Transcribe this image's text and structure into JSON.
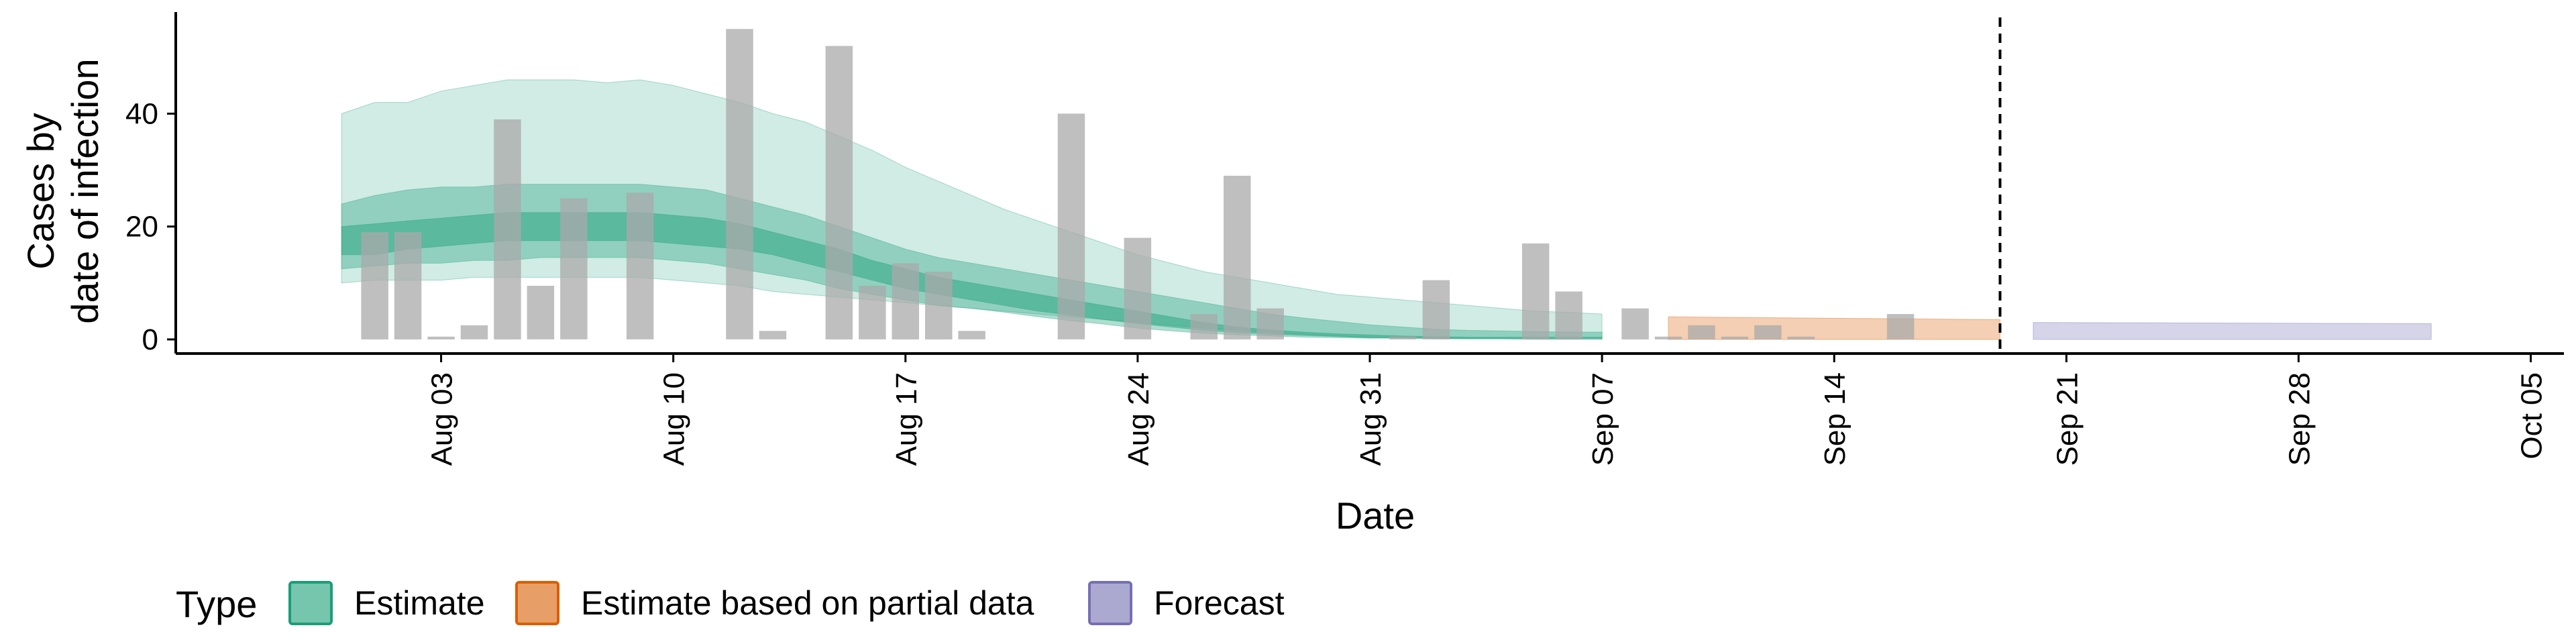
{
  "chart_data": {
    "type": "bar",
    "xlabel": "Date",
    "ylabel_lines": [
      "Cases by",
      "date of infection"
    ],
    "x_start": "2020-07-29",
    "ylim": [
      -2.5,
      58
    ],
    "yticks": [
      0,
      20,
      40
    ],
    "xticks": [
      {
        "date": "2020-08-03",
        "label": "Aug 03"
      },
      {
        "date": "2020-08-10",
        "label": "Aug 10"
      },
      {
        "date": "2020-08-17",
        "label": "Aug 17"
      },
      {
        "date": "2020-08-24",
        "label": "Aug 24"
      },
      {
        "date": "2020-08-31",
        "label": "Aug 31"
      },
      {
        "date": "2020-09-07",
        "label": "Sep 07"
      },
      {
        "date": "2020-09-14",
        "label": "Sep 14"
      },
      {
        "date": "2020-09-21",
        "label": "Sep 21"
      },
      {
        "date": "2020-09-28",
        "label": "Sep 28"
      },
      {
        "date": "2020-10-05",
        "label": "Oct 05"
      }
    ],
    "x_range": [
      "2020-07-26",
      "2020-10-06"
    ],
    "observed_cases": {
      "start_date": "2020-08-01",
      "values": [
        19,
        19,
        0.5,
        2.5,
        39,
        9.5,
        25,
        0,
        26,
        0,
        0,
        55,
        1.5,
        0,
        52,
        9.5,
        13.5,
        12,
        1.5,
        0,
        0,
        40,
        0,
        18,
        0,
        4.5,
        29,
        5.5,
        0,
        0,
        0,
        0.5,
        10.5,
        0,
        0,
        17,
        8.5,
        0,
        5.5,
        0.5,
        2.5,
        0.5,
        2.5,
        0.5,
        0,
        0,
        4.5
      ]
    },
    "vline_date": "2020-09-19",
    "estimate": {
      "start_date": "2020-07-31",
      "median": [
        17.5,
        18,
        18.5,
        19,
        19.5,
        20,
        20,
        20,
        20,
        19.5,
        19,
        19,
        18,
        17,
        16,
        14,
        12,
        10.5,
        9.5,
        8.5,
        7.5,
        6.5,
        5.5,
        4.5,
        3.5,
        2.8,
        2.1,
        1.5,
        1.1,
        0.8,
        0.6,
        0.5,
        0.4,
        0.3,
        0.3,
        0.3,
        0.3,
        0.3,
        0.3
      ],
      "inner_lo": [
        15,
        15,
        16,
        16.5,
        17,
        17.5,
        17.5,
        17.5,
        17.5,
        17.5,
        17,
        16.5,
        16,
        15,
        13.5,
        12,
        10.5,
        9,
        8,
        7,
        6,
        5,
        4.3,
        3.5,
        2.8,
        2.2,
        1.6,
        1.2,
        0.9,
        0.7,
        0.5,
        0.3,
        0.3,
        0.2,
        0.2,
        0.2,
        0.2,
        0.2,
        0.2
      ],
      "inner_hi": [
        20,
        20.5,
        21,
        21.5,
        22,
        22.5,
        22.5,
        22.5,
        22.5,
        22.5,
        22,
        21.5,
        20.5,
        19,
        17.5,
        16,
        14,
        12.5,
        11,
        10,
        9,
        8,
        7,
        6,
        5,
        4,
        3,
        2.2,
        1.7,
        1.3,
        1,
        0.8,
        0.6,
        0.5,
        0.4,
        0.4,
        0.4,
        0.4,
        0.4
      ],
      "mid_lo": [
        12.5,
        13,
        13.5,
        13.5,
        14,
        14,
        14.5,
        14.5,
        14.5,
        14.5,
        14,
        13.5,
        12.5,
        11.5,
        10.5,
        9,
        8,
        7,
        6,
        5.5,
        4.8,
        4,
        3.3,
        2.7,
        2,
        1.5,
        1.1,
        0.8,
        0.6,
        0.4,
        0.3,
        0.2,
        0.2,
        0.1,
        0.1,
        0.1,
        0.1,
        0.1,
        0.1
      ],
      "mid_hi": [
        24,
        25.5,
        26.5,
        27,
        27,
        27.5,
        27.5,
        27.5,
        27.5,
        27.5,
        27,
        26.5,
        25,
        23.5,
        22,
        20,
        18,
        16,
        14.5,
        13.5,
        12.5,
        11.5,
        10.5,
        9.5,
        8.5,
        7.5,
        6.5,
        5.5,
        4.5,
        3.8,
        3.2,
        2.6,
        2.2,
        1.8,
        1.6,
        1.5,
        1.4,
        1.3,
        1.3
      ],
      "outer_lo": [
        10,
        10.5,
        10.5,
        10.5,
        11,
        11,
        11,
        11,
        11,
        11,
        10.5,
        10,
        9.5,
        8.5,
        8,
        7.5,
        7,
        6.5,
        6,
        5.5,
        5,
        4.5,
        4,
        3.5,
        3,
        2.5,
        2,
        1.6,
        1.2,
        0.9,
        0.6,
        0.4,
        0.3,
        0.2,
        0.1,
        0.1,
        0,
        0,
        0
      ],
      "outer_hi": [
        40,
        42,
        42,
        44,
        45,
        46,
        46,
        46,
        45.5,
        46,
        45,
        43.5,
        42,
        40,
        38.5,
        36,
        33.5,
        30.5,
        28,
        25.5,
        23,
        21,
        19,
        17,
        15,
        13.5,
        12,
        11,
        10,
        9,
        8,
        7.5,
        7,
        6.5,
        6,
        5.5,
        5,
        4.8,
        4.5
      ]
    },
    "partial_estimate": {
      "start_date": "2020-09-09",
      "end_date": "2020-09-19",
      "lo": 0,
      "hi_start": 4,
      "hi_end": 3.5
    },
    "forecast": {
      "start_date": "2020-09-20",
      "end_date": "2020-10-02",
      "lo": 0,
      "hi_start": 3,
      "hi_end": 2.8
    },
    "colors": {
      "estimate_fill": "#1b9e77",
      "estimate_border": "#1b9e77",
      "partial_fill": "#d95f02",
      "partial_border": "#d95f02",
      "forecast_fill": "#7570b3",
      "forecast_border": "#7570b3",
      "bar": "#a9a9a9",
      "vline": "#000000"
    },
    "legend": {
      "title": "Type",
      "position": "bottom",
      "items": [
        {
          "label": "Estimate",
          "key": "estimate"
        },
        {
          "label": "Estimate based on partial data",
          "key": "partial"
        },
        {
          "label": "Forecast",
          "key": "forecast"
        }
      ]
    }
  }
}
